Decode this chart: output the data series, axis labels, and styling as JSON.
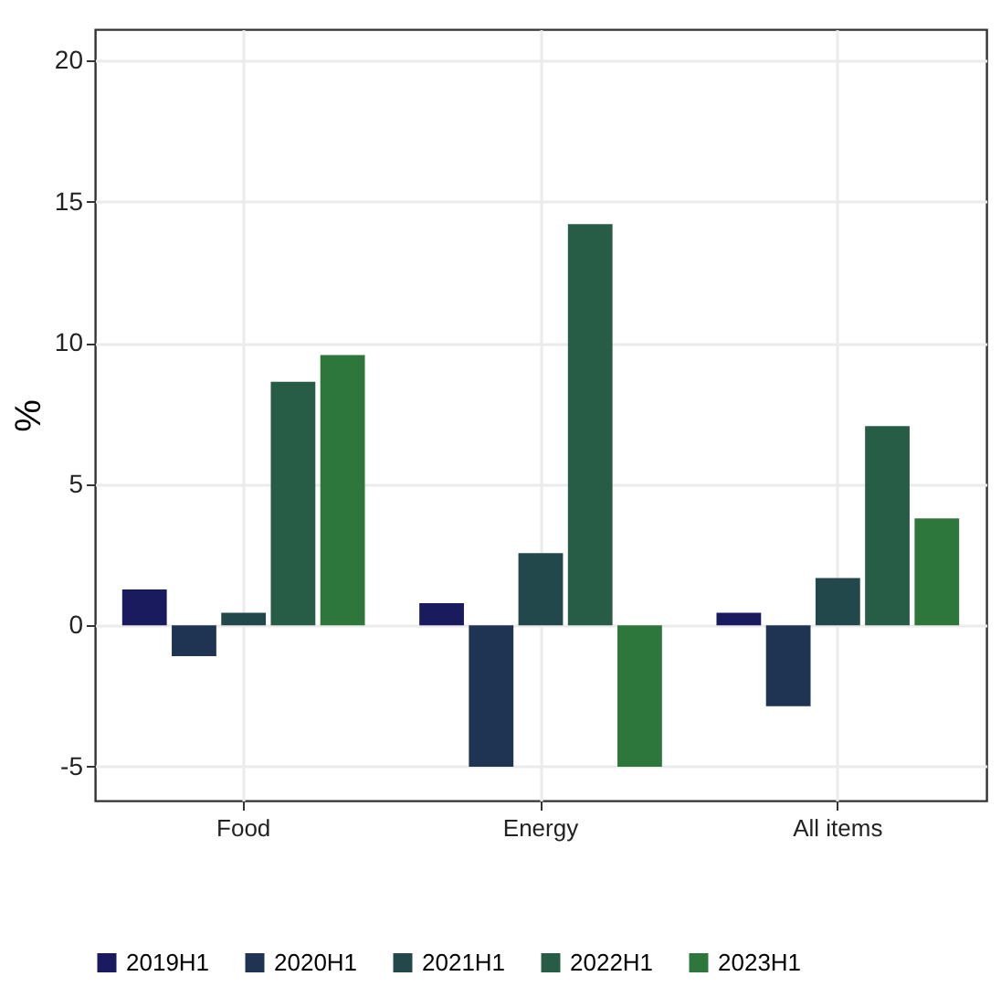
{
  "chart_data": {
    "type": "bar",
    "ylabel": "%",
    "categories": [
      "Food",
      "Energy",
      "All items"
    ],
    "series": [
      {
        "name": "2019H1",
        "color": "#1a1a5e",
        "values": [
          1.27,
          0.79,
          0.45
        ]
      },
      {
        "name": "2020H1",
        "color": "#1f3352",
        "values": [
          -1.09,
          -5.0,
          -2.86
        ]
      },
      {
        "name": "2021H1",
        "color": "#22484c",
        "values": [
          0.45,
          2.56,
          1.68
        ]
      },
      {
        "name": "2022H1",
        "color": "#275d47",
        "values": [
          8.62,
          14.2,
          7.05
        ]
      },
      {
        "name": "2023H1",
        "color": "#2e773c",
        "values": [
          9.57,
          -5.0,
          3.79
        ]
      }
    ],
    "ylim": [
      -6.2,
      21.1
    ],
    "yticks": [
      -5,
      0,
      5,
      10,
      15,
      20
    ],
    "grid": true,
    "legend": "bottom"
  }
}
